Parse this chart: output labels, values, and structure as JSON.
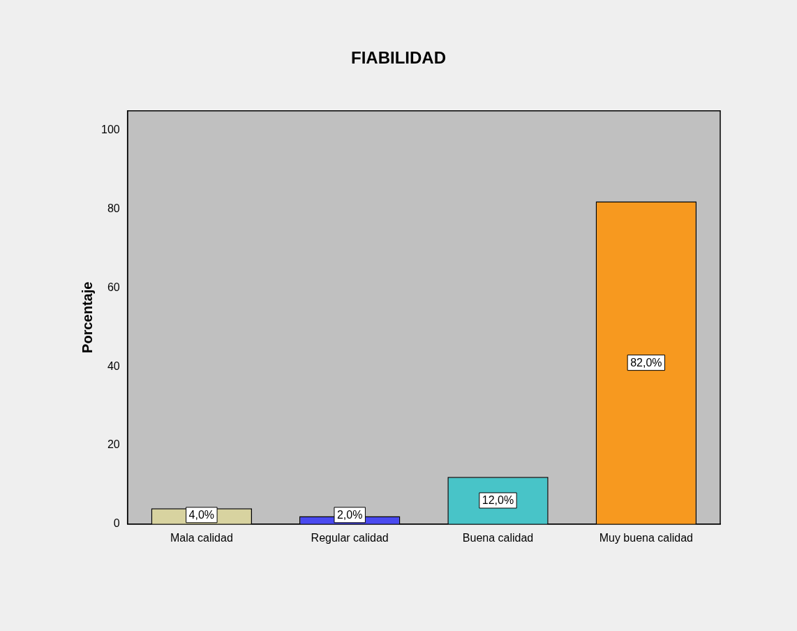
{
  "chart_data": {
    "type": "bar",
    "title": "FIABILIDAD",
    "ylabel": "Porcentaje",
    "categories": [
      "Mala calidad",
      "Regular calidad",
      "Buena calidad",
      "Muy buena calidad"
    ],
    "values": [
      4,
      2,
      12,
      82
    ],
    "colors": [
      "#d8d3a0",
      "#4a4af0",
      "#48c4c8",
      "#f7991f"
    ],
    "value_labels": [
      "4,0%",
      "2,0%",
      "12,0%",
      "82,0%"
    ],
    "ylim": [
      0,
      105
    ],
    "yticks": [
      0,
      20,
      40,
      60,
      80,
      100
    ]
  }
}
